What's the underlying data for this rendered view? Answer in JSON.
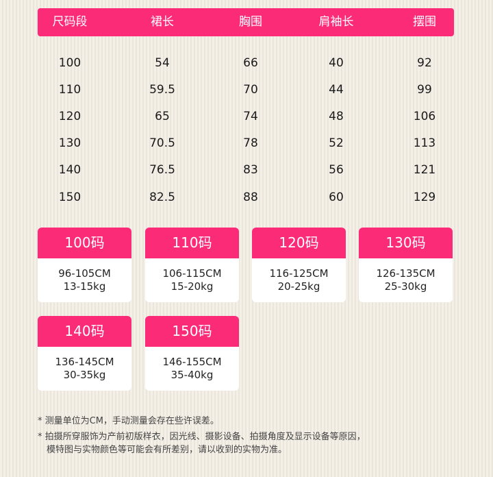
{
  "colors": {
    "accent": "#fc2b78",
    "background": "#f4f0e8"
  },
  "table": {
    "headers": [
      "尺码段",
      "裙长",
      "胸围",
      "肩袖长",
      "摆围"
    ],
    "rows": [
      [
        "100",
        "54",
        "66",
        "40",
        "92"
      ],
      [
        "110",
        "59.5",
        "70",
        "44",
        "99"
      ],
      [
        "120",
        "65",
        "74",
        "48",
        "106"
      ],
      [
        "130",
        "70.5",
        "78",
        "52",
        "113"
      ],
      [
        "140",
        "76.5",
        "83",
        "56",
        "121"
      ],
      [
        "150",
        "82.5",
        "88",
        "60",
        "129"
      ]
    ]
  },
  "cards": [
    {
      "size": "100码",
      "height": "96-105CM",
      "weight": "13-15kg"
    },
    {
      "size": "110码",
      "height": "106-115CM",
      "weight": "15-20kg"
    },
    {
      "size": "120码",
      "height": "116-125CM",
      "weight": "20-25kg"
    },
    {
      "size": "130码",
      "height": "126-135CM",
      "weight": "25-30kg"
    },
    {
      "size": "140码",
      "height": "136-145CM",
      "weight": "30-35kg"
    },
    {
      "size": "150码",
      "height": "146-155CM",
      "weight": "35-40kg"
    }
  ],
  "notes": [
    "* 测量单位为CM，手动测量会存在些许误差。",
    "* 拍摄所穿服饰为产前初版样衣，因光线、摄影设备、拍摄角度及显示设备等原因，",
    "模特图与实物颜色等可能会有所差别，请以收到的实物为准。"
  ]
}
